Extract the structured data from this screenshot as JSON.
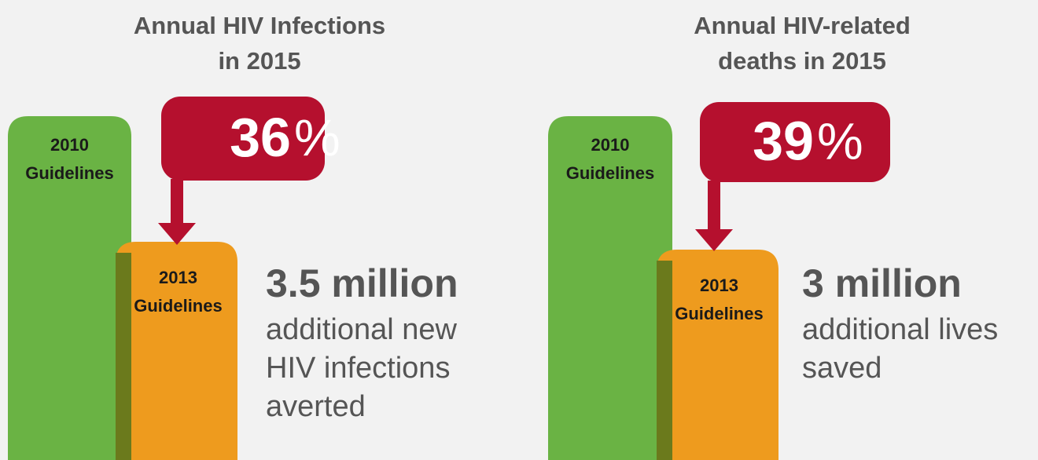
{
  "panels": [
    {
      "title": [
        "Annual HIV Infections",
        "in 2015"
      ],
      "bar_2010": [
        "2010",
        "Guidelines"
      ],
      "bar_2013": [
        "2013",
        "Guidelines"
      ],
      "percent": "36",
      "percent_sign": "%",
      "headline": "3.5 million",
      "description": [
        "additional new",
        "HIV infections",
        "averted"
      ]
    },
    {
      "title": [
        "Annual HIV-related",
        "deaths in 2015"
      ],
      "bar_2010": [
        "2010",
        "Guidelines"
      ],
      "bar_2013": [
        "2013",
        "Guidelines"
      ],
      "percent": "39",
      "percent_sign": "%",
      "headline": "3 million",
      "description": [
        "additional lives",
        "saved"
      ]
    }
  ]
}
